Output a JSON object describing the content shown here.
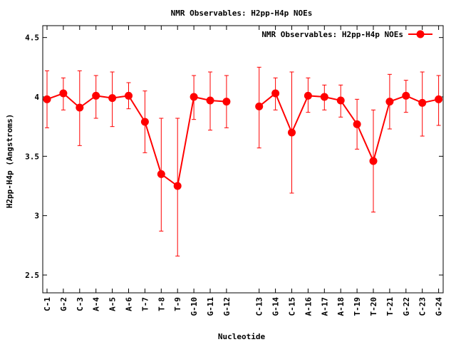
{
  "chart_data": {
    "type": "line",
    "title": "NMR Observables: H2pp-H4p NOEs",
    "xlabel": "Nucleotide",
    "ylabel": "H2pp-H4p (Angstroms)",
    "ylim": [
      2.35,
      4.6
    ],
    "yticks": [
      "2.5",
      "3",
      "3.5",
      "4",
      "4.5"
    ],
    "grid": false,
    "legend_position": "top-right",
    "color": "#ff0000",
    "categories": [
      "C-1",
      "G-2",
      "C-3",
      "A-4",
      "A-5",
      "A-6",
      "T-7",
      "T-8",
      "T-9",
      "G-10",
      "G-11",
      "G-12",
      "C-13",
      "G-14",
      "C-15",
      "A-16",
      "A-17",
      "A-18",
      "T-19",
      "T-20",
      "T-21",
      "G-22",
      "C-23",
      "G-24"
    ],
    "series": [
      {
        "name": "NMR Observables: H2pp-H4p NOEs",
        "segments": [
          {
            "x": [
              "C-1",
              "G-2",
              "C-3",
              "A-4",
              "A-5",
              "A-6",
              "T-7",
              "T-8",
              "T-9",
              "G-10",
              "G-11",
              "G-12"
            ],
            "y": [
              3.98,
              4.03,
              3.91,
              4.01,
              3.99,
              4.01,
              3.79,
              3.35,
              3.25,
              4.0,
              3.97,
              3.96
            ],
            "err_low": [
              3.74,
              3.89,
              3.59,
              3.82,
              3.75,
              3.9,
              3.53,
              2.87,
              2.66,
              3.81,
              3.72,
              3.74
            ],
            "err_high": [
              4.22,
              4.16,
              4.22,
              4.18,
              4.21,
              4.12,
              4.05,
              3.82,
              3.82,
              4.18,
              4.21,
              4.18
            ]
          },
          {
            "x": [
              "C-13",
              "G-14",
              "C-15",
              "A-16",
              "A-17",
              "A-18",
              "T-19",
              "T-20",
              "T-21",
              "G-22",
              "C-23",
              "G-24"
            ],
            "y": [
              3.92,
              4.03,
              3.7,
              4.01,
              4.0,
              3.97,
              3.77,
              3.46,
              3.96,
              4.01,
              3.95,
              3.98
            ],
            "err_low": [
              3.57,
              3.89,
              3.19,
              3.87,
              3.89,
              3.83,
              3.56,
              3.03,
              3.73,
              3.87,
              3.67,
              3.76
            ],
            "err_high": [
              4.25,
              4.16,
              4.21,
              4.16,
              4.1,
              4.1,
              3.98,
              3.89,
              4.19,
              4.14,
              4.21,
              4.18
            ]
          }
        ]
      }
    ]
  }
}
